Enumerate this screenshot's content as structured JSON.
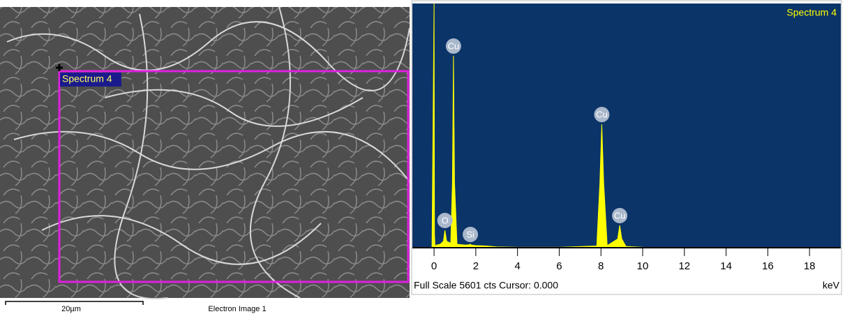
{
  "image": {
    "region_label": "Spectrum 4",
    "scale_bar_label": "20µm",
    "caption": "Electron Image 1"
  },
  "chart_data": {
    "type": "area",
    "title": "Spectrum 4",
    "x": [
      -0.1,
      0.0,
      0.02,
      0.05,
      0.1,
      0.3,
      0.45,
      0.52,
      0.6,
      0.8,
      0.88,
      0.93,
      0.98,
      1.1,
      1.5,
      1.7,
      1.74,
      1.8,
      2.0,
      2.5,
      3.0,
      4,
      6,
      7.8,
      7.95,
      8.04,
      8.13,
      8.3,
      8.8,
      8.9,
      9.0,
      9.2,
      10,
      14,
      19.3
    ],
    "values": [
      0,
      5601,
      300,
      0,
      60,
      80,
      150,
      400,
      150,
      100,
      1500,
      4400,
      1500,
      80,
      60,
      70,
      80,
      60,
      50,
      40,
      20,
      10,
      10,
      40,
      1500,
      2830,
      1500,
      50,
      200,
      512,
      200,
      30,
      10,
      5,
      0
    ],
    "color": "#ffff00",
    "background": "#0b3468",
    "peak_labels": [
      {
        "label": "Cu",
        "x": 0.93,
        "value": 4400
      },
      {
        "label": "O",
        "x": 0.52,
        "value": 400
      },
      {
        "label": "Si",
        "x": 1.74,
        "value": 80
      },
      {
        "label": "Cu",
        "x": 8.04,
        "value": 2830
      },
      {
        "label": "Cu",
        "x": 8.9,
        "value": 512
      }
    ],
    "xlim": [
      -1.04,
      19.5
    ],
    "ylim": [
      0,
      5601
    ],
    "xticks": [
      0,
      2,
      4,
      6,
      8,
      10,
      12,
      14,
      16,
      18
    ],
    "status_text": "Full Scale 5601 cts Cursor: 0.000",
    "x_label": "keV"
  }
}
